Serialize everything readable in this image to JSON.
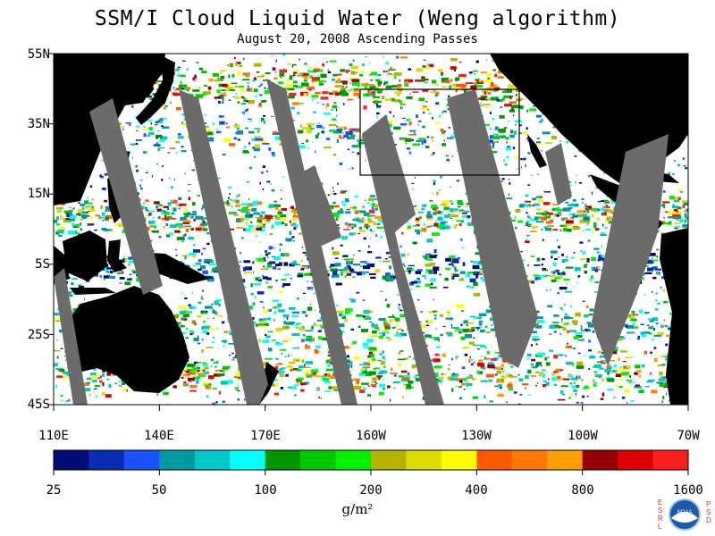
{
  "title": "SSM/I Cloud Liquid Water (Weng algorithm)",
  "subtitle": "August 20, 2008  Ascending Passes",
  "map": {
    "lat_labels": [
      "55N",
      "35N",
      "15N",
      "5S",
      "25S",
      "45S"
    ],
    "lon_labels": [
      "110E",
      "140E",
      "170E",
      "160W",
      "130W",
      "100W",
      "70W"
    ],
    "colors": {
      "land": "#000000",
      "no_data": "#6b6b6b",
      "clear": "#ffffff"
    }
  },
  "colorbar": {
    "colors": [
      "#000c78",
      "#0a2db4",
      "#1e50ff",
      "#00999f",
      "#00c8c8",
      "#00ffff",
      "#009600",
      "#00c800",
      "#00f000",
      "#b4b400",
      "#dcdc00",
      "#ffff00",
      "#ff5a00",
      "#ff7800",
      "#ffa000",
      "#960000",
      "#dc0000",
      "#ff1e1e"
    ],
    "tick_labels": [
      "25",
      "50",
      "100",
      "200",
      "400",
      "800",
      "1600"
    ],
    "unit": "g/m²"
  },
  "logo": {
    "name": "NOAA",
    "left_letters": "ESRL",
    "right_letters": "PSD"
  }
}
